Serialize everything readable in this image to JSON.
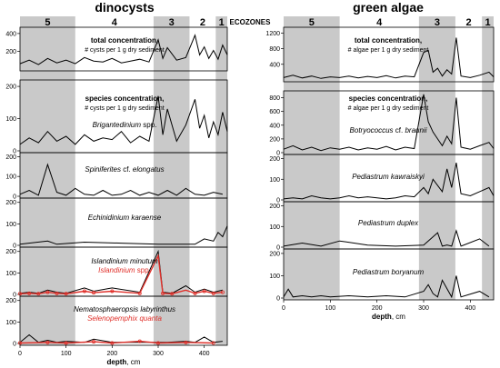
{
  "panels": [
    {
      "id": "dino",
      "title": "dinocysts",
      "x_label": "depth",
      "x_unit": ", cm",
      "x_ticks": [
        0,
        100,
        200,
        300,
        400
      ],
      "xlim": [
        0,
        450
      ],
      "zones": [
        {
          "label": "5",
          "shaded": true,
          "range": [
            0,
            120
          ]
        },
        {
          "label": "4",
          "shaded": false,
          "range": [
            120,
            290
          ]
        },
        {
          "label": "3",
          "shaded": true,
          "range": [
            290,
            368
          ]
        },
        {
          "label": "2",
          "shaded": false,
          "range": [
            368,
            425
          ]
        },
        {
          "label": "1",
          "shaded": true,
          "range": [
            425,
            450
          ]
        }
      ],
      "header_groups": [
        {
          "text": "total concentration,",
          "sub": "# cysts per 1 g dry sediment"
        },
        {
          "text": "species concentration,",
          "sub": "# cysts per 1 g dry sediment"
        }
      ],
      "chart_data": [
        {
          "type": "line",
          "name": "total concentration",
          "ylim": [
            0,
            450
          ],
          "y_ticks": [
            200,
            400
          ],
          "x": [
            0,
            20,
            40,
            60,
            80,
            100,
            120,
            140,
            160,
            180,
            200,
            220,
            240,
            260,
            280,
            300,
            310,
            320,
            340,
            360,
            380,
            390,
            400,
            410,
            420,
            430,
            440,
            450
          ],
          "y": [
            60,
            100,
            50,
            120,
            70,
            100,
            60,
            130,
            90,
            80,
            120,
            70,
            90,
            110,
            80,
            330,
            120,
            240,
            100,
            130,
            380,
            160,
            250,
            120,
            210,
            110,
            270,
            160
          ]
        },
        {
          "type": "line",
          "name": "Brigantedinium spp.",
          "ylim": [
            0,
            220
          ],
          "y_ticks": [
            0,
            100,
            200
          ],
          "x": [
            0,
            20,
            40,
            60,
            80,
            100,
            120,
            140,
            160,
            180,
            200,
            220,
            240,
            260,
            280,
            300,
            310,
            320,
            340,
            360,
            380,
            390,
            400,
            410,
            420,
            430,
            440,
            450
          ],
          "y": [
            20,
            40,
            25,
            60,
            30,
            45,
            20,
            50,
            30,
            40,
            35,
            60,
            25,
            45,
            30,
            170,
            50,
            130,
            30,
            80,
            160,
            70,
            110,
            40,
            90,
            50,
            120,
            60
          ]
        },
        {
          "type": "line",
          "name": "Spiniferites cf. elongatus",
          "ylim": [
            0,
            220
          ],
          "y_ticks": [
            0,
            100,
            200
          ],
          "x": [
            0,
            20,
            40,
            60,
            80,
            100,
            120,
            140,
            160,
            180,
            200,
            220,
            240,
            260,
            280,
            300,
            320,
            340,
            360,
            380,
            400,
            420,
            440
          ],
          "y": [
            10,
            30,
            5,
            160,
            20,
            5,
            40,
            10,
            5,
            30,
            5,
            10,
            30,
            5,
            20,
            5,
            30,
            5,
            40,
            10,
            5,
            20,
            10
          ]
        },
        {
          "type": "line",
          "name": "Echinidinium karaense",
          "ylim": [
            0,
            220
          ],
          "y_ticks": [
            0,
            100,
            200
          ],
          "x": [
            0,
            60,
            80,
            140,
            220,
            300,
            380,
            400,
            420,
            430,
            440,
            450
          ],
          "y": [
            5,
            20,
            5,
            15,
            10,
            5,
            5,
            30,
            20,
            60,
            40,
            90
          ]
        },
        {
          "type": "line",
          "name": "Islandinium minutum",
          "ylim": [
            0,
            220
          ],
          "y_ticks": [
            0,
            100,
            200
          ],
          "x": [
            0,
            20,
            40,
            60,
            80,
            100,
            140,
            160,
            200,
            260,
            300,
            310,
            330,
            360,
            380,
            400,
            420,
            440
          ],
          "y": [
            5,
            10,
            5,
            20,
            10,
            5,
            30,
            15,
            30,
            10,
            200,
            10,
            5,
            40,
            10,
            25,
            10,
            20
          ]
        },
        {
          "type": "line",
          "name": "Islandinium spp.",
          "ylim": [
            0,
            220
          ],
          "y_ticks": [
            0,
            100,
            200
          ],
          "x": [
            0,
            20,
            40,
            60,
            80,
            100,
            140,
            160,
            200,
            260,
            300,
            310,
            330,
            360,
            380,
            400,
            420,
            440
          ],
          "y": [
            3,
            5,
            3,
            10,
            5,
            3,
            15,
            8,
            15,
            5,
            180,
            5,
            3,
            20,
            5,
            15,
            5,
            10
          ]
        },
        {
          "type": "line",
          "name": "Nematosphaeropsis labyrinthus",
          "ylim": [
            0,
            220
          ],
          "y_ticks": [
            0,
            100,
            200
          ],
          "x": [
            0,
            20,
            40,
            60,
            80,
            100,
            140,
            160,
            200,
            260,
            300,
            320,
            360,
            380,
            400,
            420,
            440
          ],
          "y": [
            5,
            40,
            5,
            15,
            5,
            10,
            5,
            20,
            5,
            5,
            5,
            5,
            10,
            5,
            30,
            5,
            10
          ]
        },
        {
          "type": "line",
          "name": "Selenopemphix quanta",
          "ylim": [
            0,
            220
          ],
          "y_ticks": [
            0,
            100,
            200
          ],
          "x": [
            0,
            60,
            100,
            160,
            200,
            260,
            300,
            360,
            420
          ],
          "y": [
            2,
            5,
            2,
            8,
            2,
            10,
            2,
            5,
            2
          ]
        }
      ],
      "subplot_labels": [
        {
          "text": "Brigantedinium",
          "suffix": " spp."
        },
        {
          "text": "Spiniferites",
          "suffix": " cf. ",
          "italic2": "elongatus"
        },
        {
          "text": "Echinidinium karaense"
        },
        {
          "text": "Islandinium minutum",
          "red": "Islandinium",
          "red_suffix": " spp."
        },
        {
          "text": "Nematosphaeropsis labyrinthus",
          "red": "Selenopemphix quanta"
        }
      ]
    },
    {
      "id": "algae",
      "title": "green algae",
      "x_label": "depth",
      "x_unit": ", cm",
      "x_ticks": [
        0,
        100,
        200,
        300,
        400
      ],
      "xlim": [
        0,
        450
      ],
      "zones": [
        {
          "label": "5",
          "shaded": true,
          "range": [
            0,
            120
          ]
        },
        {
          "label": "4",
          "shaded": false,
          "range": [
            120,
            290
          ]
        },
        {
          "label": "3",
          "shaded": true,
          "range": [
            290,
            368
          ]
        },
        {
          "label": "2",
          "shaded": false,
          "range": [
            368,
            425
          ]
        },
        {
          "label": "1",
          "shaded": true,
          "range": [
            425,
            450
          ]
        }
      ],
      "header_groups": [
        {
          "text": "total concentration,",
          "sub": "# algae per 1 g dry sediment"
        },
        {
          "text": "species concentration,",
          "sub": "# algae per 1 g dry sediment"
        }
      ],
      "chart_data": [
        {
          "type": "line",
          "name": "total concentration",
          "ylim": [
            0,
            1300
          ],
          "y_ticks": [
            400,
            800,
            1200
          ],
          "x": [
            0,
            20,
            40,
            60,
            80,
            100,
            120,
            140,
            160,
            180,
            200,
            220,
            240,
            260,
            280,
            300,
            310,
            320,
            330,
            340,
            350,
            360,
            370,
            380,
            400,
            420,
            440,
            450
          ],
          "y": [
            60,
            120,
            50,
            100,
            40,
            80,
            60,
            100,
            50,
            90,
            60,
            110,
            50,
            100,
            80,
            700,
            760,
            200,
            300,
            100,
            260,
            150,
            1080,
            100,
            60,
            120,
            200,
            80
          ]
        },
        {
          "type": "line",
          "name": "Botryococcus cf. braunii",
          "ylim": [
            0,
            900
          ],
          "y_ticks": [
            0,
            200,
            400,
            600,
            800
          ],
          "x": [
            0,
            20,
            40,
            60,
            80,
            100,
            120,
            140,
            160,
            180,
            200,
            220,
            240,
            260,
            280,
            300,
            310,
            320,
            330,
            340,
            350,
            360,
            370,
            380,
            400,
            420,
            440,
            450
          ],
          "y": [
            50,
            100,
            40,
            80,
            30,
            70,
            50,
            80,
            40,
            70,
            50,
            90,
            40,
            80,
            60,
            850,
            450,
            300,
            200,
            100,
            240,
            130,
            800,
            80,
            50,
            100,
            150,
            60
          ]
        },
        {
          "type": "line",
          "name": "Pediastrum kawraiskyi",
          "ylim": [
            0,
            220
          ],
          "y_ticks": [
            0,
            100,
            200
          ],
          "x": [
            0,
            20,
            40,
            60,
            80,
            100,
            120,
            140,
            160,
            180,
            200,
            220,
            240,
            260,
            280,
            300,
            310,
            320,
            340,
            350,
            360,
            370,
            380,
            400,
            420,
            440,
            450
          ],
          "y": [
            5,
            10,
            5,
            20,
            10,
            5,
            10,
            20,
            10,
            15,
            10,
            5,
            10,
            20,
            15,
            60,
            30,
            100,
            40,
            150,
            60,
            180,
            30,
            20,
            40,
            60,
            20
          ]
        },
        {
          "type": "line",
          "name": "Pediastrum duplex",
          "ylim": [
            0,
            220
          ],
          "y_ticks": [
            0,
            100,
            200
          ],
          "x": [
            0,
            40,
            80,
            120,
            180,
            240,
            300,
            330,
            340,
            350,
            360,
            370,
            380,
            420,
            440
          ],
          "y": [
            5,
            20,
            5,
            30,
            10,
            5,
            10,
            70,
            5,
            10,
            5,
            80,
            5,
            40,
            5
          ]
        },
        {
          "type": "line",
          "name": "Pediastrum boryanum",
          "ylim": [
            0,
            220
          ],
          "y_ticks": [
            0,
            100,
            200
          ],
          "x": [
            0,
            10,
            20,
            40,
            60,
            80,
            100,
            140,
            180,
            220,
            260,
            300,
            310,
            320,
            330,
            340,
            360,
            370,
            380,
            420,
            440
          ],
          "y": [
            5,
            40,
            5,
            10,
            5,
            10,
            5,
            10,
            5,
            10,
            5,
            30,
            60,
            20,
            5,
            80,
            5,
            100,
            5,
            30,
            5
          ]
        }
      ],
      "subplot_labels": [
        {
          "text": "Botryococcus",
          "suffix": " cf. ",
          "italic2": "braunii"
        },
        {
          "text": "Pediastrum kawraiskyi"
        },
        {
          "text": "Pediastrum duplex"
        },
        {
          "text": "Pediastrum boryanum"
        }
      ]
    }
  ],
  "center_label": "ECOZONES"
}
